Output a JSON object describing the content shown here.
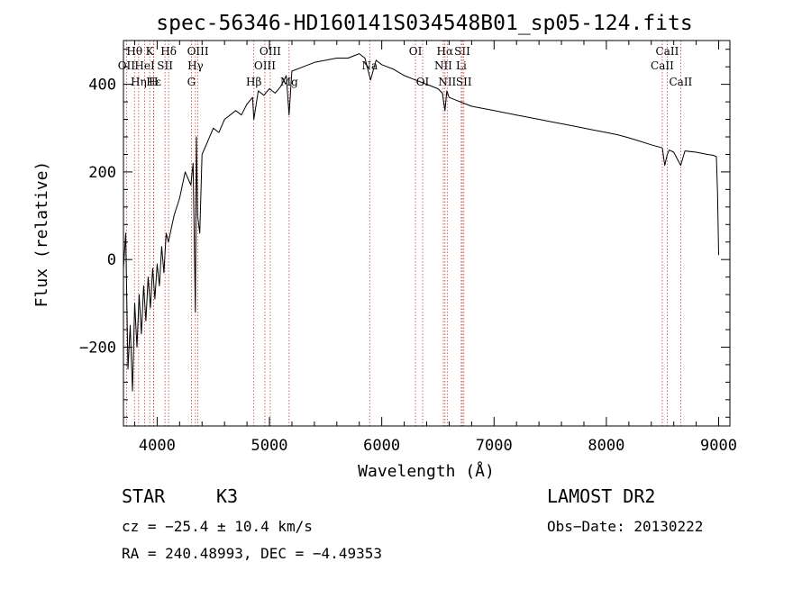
{
  "chart_data": {
    "type": "line",
    "title": "spec-56346-HD160141S034548B01_sp05-124.fits",
    "xlabel": "Wavelength (Å)",
    "ylabel": "Flux (relative)",
    "xlim": [
      3700,
      9100
    ],
    "ylim": [
      -380,
      500
    ],
    "x_ticks": [
      4000,
      5000,
      6000,
      7000,
      8000,
      9000
    ],
    "y_ticks": [
      -200,
      0,
      200,
      400
    ],
    "y_tick_labels": [
      "−200",
      "0",
      "200",
      "400"
    ],
    "series": [
      {
        "name": "spectrum",
        "x": [
          3700,
          3720,
          3740,
          3760,
          3780,
          3800,
          3820,
          3840,
          3860,
          3880,
          3900,
          3920,
          3940,
          3960,
          3980,
          4000,
          4020,
          4040,
          4060,
          4080,
          4100,
          4150,
          4200,
          4250,
          4300,
          4320,
          4340,
          4350,
          4360,
          4380,
          4400,
          4450,
          4500,
          4550,
          4600,
          4650,
          4700,
          4750,
          4800,
          4850,
          4861,
          4900,
          4950,
          5000,
          5050,
          5100,
          5150,
          5175,
          5200,
          5300,
          5400,
          5500,
          5600,
          5700,
          5800,
          5850,
          5890,
          5900,
          5950,
          6000,
          6100,
          6200,
          6300,
          6400,
          6500,
          6540,
          6563,
          6580,
          6600,
          6700,
          6800,
          6900,
          7000,
          7100,
          7200,
          7300,
          7400,
          7500,
          7600,
          7700,
          7800,
          7900,
          8000,
          8100,
          8200,
          8300,
          8400,
          8498,
          8520,
          8542,
          8560,
          8600,
          8662,
          8700,
          8800,
          8900,
          8950,
          8980,
          8990,
          9000
        ],
        "y": [
          -20,
          60,
          -250,
          -150,
          -300,
          -100,
          -200,
          -80,
          -170,
          -60,
          -140,
          -40,
          -110,
          -20,
          -90,
          -10,
          -60,
          30,
          -30,
          60,
          40,
          100,
          140,
          200,
          170,
          220,
          -120,
          280,
          100,
          60,
          240,
          270,
          300,
          290,
          320,
          330,
          340,
          330,
          355,
          370,
          320,
          385,
          375,
          390,
          380,
          395,
          420,
          330,
          430,
          440,
          450,
          455,
          460,
          460,
          470,
          460,
          420,
          410,
          455,
          445,
          435,
          420,
          410,
          400,
          390,
          380,
          340,
          385,
          370,
          360,
          350,
          345,
          340,
          335,
          330,
          325,
          320,
          315,
          310,
          305,
          300,
          295,
          290,
          285,
          278,
          270,
          262,
          255,
          215,
          240,
          250,
          245,
          215,
          248,
          245,
          240,
          238,
          235,
          150,
          10
        ]
      }
    ],
    "line_markers": [
      {
        "label": "Hθ",
        "x": 3798,
        "row": 1
      },
      {
        "label": "OII",
        "x": 3727,
        "row": 2
      },
      {
        "label": "Hε",
        "x": 3970,
        "row": 3
      },
      {
        "label": "Hη",
        "x": 3835,
        "row": 3
      },
      {
        "label": "K",
        "x": 3934,
        "row": 1
      },
      {
        "label": "HeI",
        "x": 3889,
        "row": 2
      },
      {
        "label": "H",
        "x": 3968,
        "row": 3
      },
      {
        "label": "Hδ",
        "x": 4102,
        "row": 1
      },
      {
        "label": "SII",
        "x": 4070,
        "row": 2
      },
      {
        "label": "OIII",
        "x": 4363,
        "row": 1
      },
      {
        "label": "Hγ",
        "x": 4341,
        "row": 2
      },
      {
        "label": "G",
        "x": 4305,
        "row": 3
      },
      {
        "label": "OIII",
        "x": 5007,
        "row": 1
      },
      {
        "label": "OIII",
        "x": 4959,
        "row": 2
      },
      {
        "label": "Hβ",
        "x": 4861,
        "row": 3
      },
      {
        "label": "Mg",
        "x": 5175,
        "row": 3
      },
      {
        "label": "Na",
        "x": 5893,
        "row": 2
      },
      {
        "label": "OI",
        "x": 6300,
        "row": 1
      },
      {
        "label": "OI",
        "x": 6364,
        "row": 3
      },
      {
        "label": "Hα",
        "x": 6563,
        "row": 1
      },
      {
        "label": "NII",
        "x": 6548,
        "row": 2
      },
      {
        "label": "NII",
        "x": 6583,
        "row": 3
      },
      {
        "label": "SII",
        "x": 6717,
        "row": 1
      },
      {
        "label": "Li",
        "x": 6708,
        "row": 2
      },
      {
        "label": "SII",
        "x": 6731,
        "row": 3
      },
      {
        "label": "CaII",
        "x": 8542,
        "row": 1
      },
      {
        "label": "CaII",
        "x": 8498,
        "row": 2
      },
      {
        "label": "CaII",
        "x": 8662,
        "row": 3
      }
    ]
  },
  "info": {
    "class": "STAR",
    "subclass": "K3",
    "cz": "cz = −25.4 ± 10.4 km/s",
    "coords": "RA = 240.48993, DEC =  −4.49353",
    "survey": "LAMOST DR2",
    "obs_date": "Obs−Date: 20130222"
  }
}
